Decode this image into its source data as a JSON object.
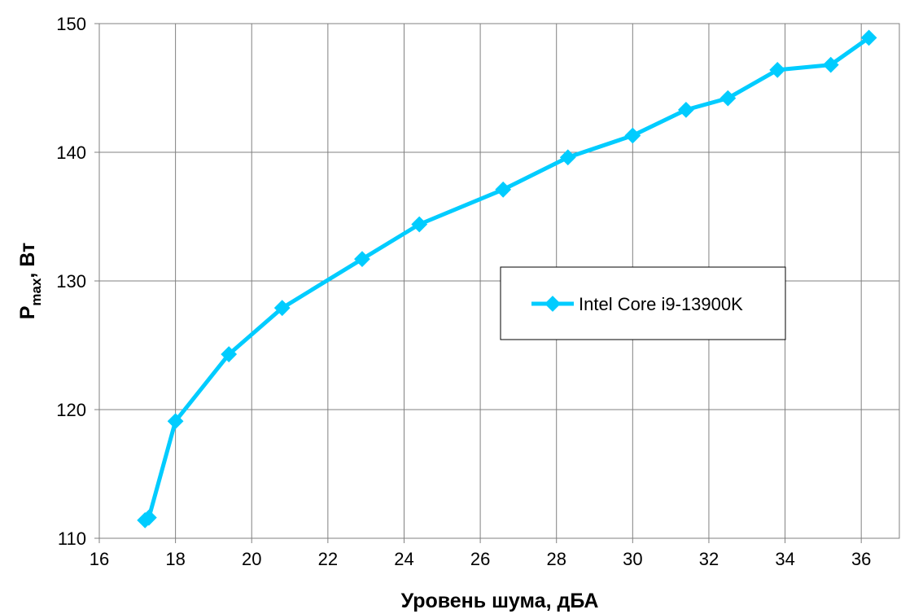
{
  "chart_data": {
    "type": "line",
    "title": "",
    "xlabel": "Уровень шума, дБА",
    "ylabel_main": "P",
    "ylabel_sub": "max",
    "ylabel_rest": ", Вт",
    "xlim": [
      16,
      37
    ],
    "ylim": [
      110,
      150
    ],
    "xticks": [
      16,
      18,
      20,
      22,
      24,
      26,
      28,
      30,
      32,
      34,
      36
    ],
    "yticks": [
      110,
      120,
      130,
      140,
      150
    ],
    "grid": true,
    "legend_position": "center-right",
    "series": [
      {
        "name": "Intel Core i9-13900K",
        "color": "#00CCFF",
        "marker": "diamond",
        "x": [
          17.2,
          17.3,
          18.0,
          19.4,
          20.8,
          22.9,
          24.4,
          26.6,
          28.3,
          30.0,
          31.4,
          32.5,
          33.8,
          35.2,
          36.2
        ],
        "y": [
          111.4,
          111.6,
          119.1,
          124.3,
          127.9,
          131.7,
          134.4,
          137.1,
          139.6,
          141.3,
          143.3,
          144.2,
          146.4,
          146.8,
          148.9
        ]
      }
    ]
  }
}
